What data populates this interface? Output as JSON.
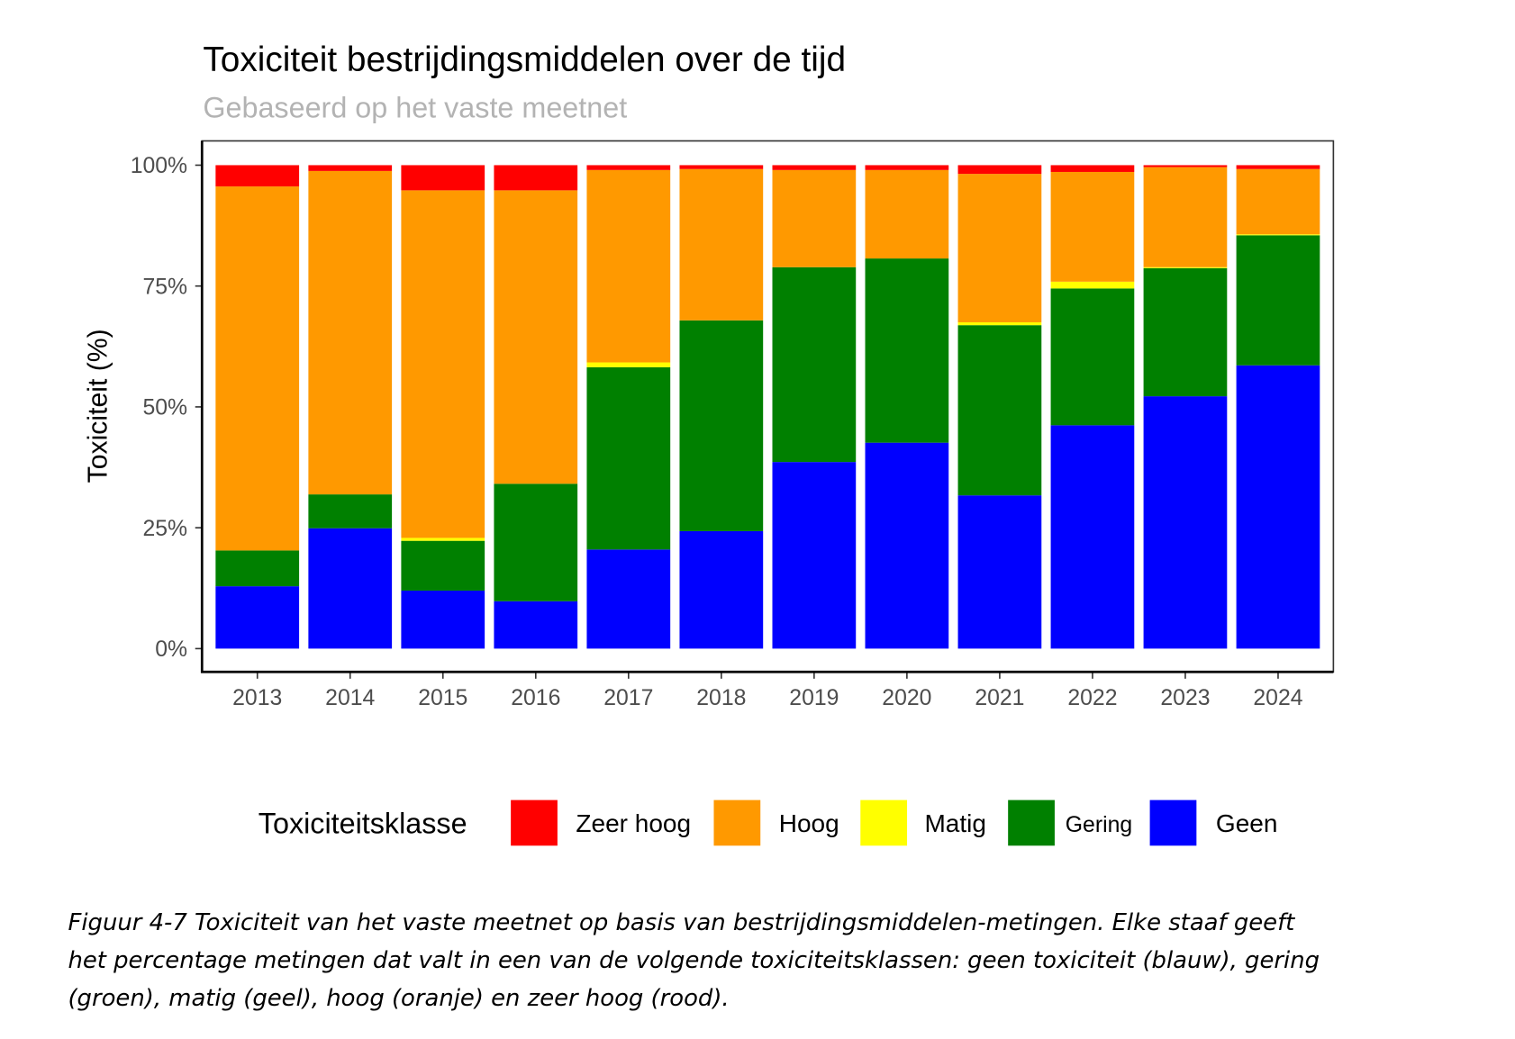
{
  "chart_data": {
    "type": "bar",
    "stacked": true,
    "title": "Toxiciteit bestrijdingsmiddelen over de tijd",
    "subtitle": "Gebaseerd op het vaste meetnet",
    "xlabel": "",
    "ylabel": "Toxiciteit (%)",
    "ylim": [
      0,
      100
    ],
    "yticks": [
      "0%",
      "25%",
      "50%",
      "75%",
      "100%"
    ],
    "ytick_values": [
      0,
      25,
      50,
      75,
      100
    ],
    "categories": [
      "2013",
      "2014",
      "2015",
      "2016",
      "2017",
      "2018",
      "2019",
      "2020",
      "2021",
      "2022",
      "2023",
      "2024"
    ],
    "legend_title": "Toxiciteitsklasse",
    "legend_position": "bottom",
    "series": [
      {
        "name": "Geen",
        "color": "#0000FF",
        "values": [
          12.9,
          24.9,
          12.0,
          9.8,
          20.5,
          24.3,
          38.6,
          42.6,
          31.7,
          46.2,
          52.2,
          58.6
        ]
      },
      {
        "name": "Gering",
        "color": "#008000",
        "values": [
          7.4,
          7.0,
          10.3,
          24.3,
          37.7,
          43.6,
          40.3,
          38.1,
          35.2,
          28.3,
          26.5,
          26.9
        ]
      },
      {
        "name": "Matig",
        "color": "#FFFF00",
        "values": [
          0.0,
          0.0,
          0.6,
          0.0,
          1.0,
          0.0,
          0.0,
          0.0,
          0.6,
          1.4,
          0.2,
          0.2
        ]
      },
      {
        "name": "Hoog",
        "color": "#FF9900",
        "values": [
          75.3,
          66.9,
          71.9,
          60.7,
          39.8,
          31.3,
          20.1,
          18.3,
          30.7,
          22.7,
          20.7,
          13.5
        ]
      },
      {
        "name": "Zeer hoog",
        "color": "#FF0000",
        "values": [
          4.4,
          1.2,
          5.2,
          5.2,
          1.0,
          0.8,
          1.0,
          1.0,
          1.8,
          1.4,
          0.4,
          0.8
        ]
      }
    ],
    "legend_order": [
      "Zeer hoog",
      "Hoog",
      "Matig",
      "Gering",
      "Geen"
    ]
  },
  "caption": {
    "lines": [
      "Figuur 4-7 Toxiciteit van het vaste meetnet op basis van bestrijdingsmiddelen-metingen. Elke staaf geeft",
      "het percentage metingen dat valt in een van de volgende toxiciteitsklassen: geen toxiciteit (blauw), gering",
      "(groen), matig (geel), hoog (oranje) en zeer hoog (rood)."
    ]
  }
}
